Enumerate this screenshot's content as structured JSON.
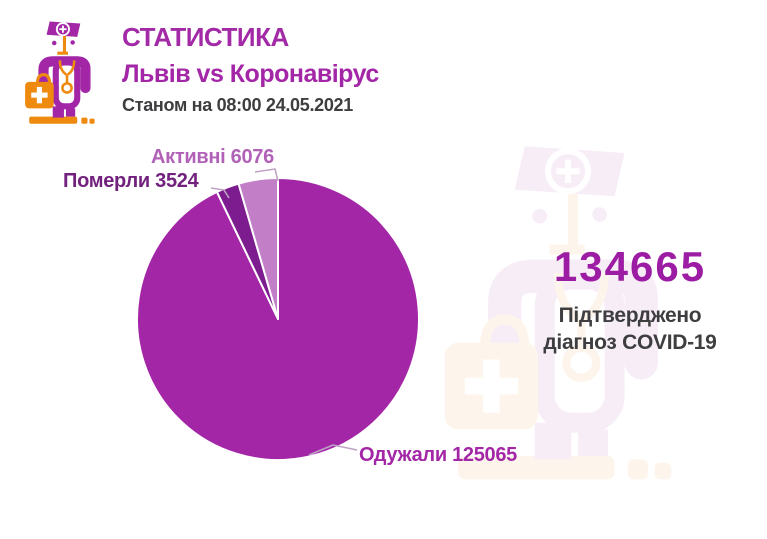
{
  "header": {
    "title": "СТАТИСТИКА",
    "subtitle": "Львів vs Коронавірус",
    "as_of": "Станом на 08:00 24.05.2021"
  },
  "summary": {
    "total": "134665",
    "caption_line1": "Підтверджено",
    "caption_line2": "діагноз COVID-19"
  },
  "icons": {
    "logo": "doctor-mascot-icon",
    "watermark": "doctor-mascot-watermark-icon"
  },
  "chart_data": {
    "type": "pie",
    "title": "",
    "total": 134665,
    "start_angle_deg": 0,
    "direction": "clockwise",
    "legend_position": "callout-labels",
    "slices": [
      {
        "id": "oduzhaly",
        "label": "Одужали",
        "value": 125065,
        "percent": 92.9,
        "color": "#A326A7",
        "label_color": "#A326A7",
        "callout": "Одужали 125065"
      },
      {
        "id": "pomerly",
        "label": "Померли",
        "value": 3524,
        "percent": 2.6,
        "color": "#7C1C8E",
        "label_color": "#73217E",
        "callout": "Померли 3524"
      },
      {
        "id": "aktyvni",
        "label": "Активні",
        "value": 6076,
        "percent": 4.5,
        "color": "#C27FC7",
        "label_color": "#B162B8",
        "callout": "Активні 6076"
      }
    ]
  },
  "colors": {
    "magenta": "#A326A7",
    "dark_purple": "#7C1C8E",
    "light_orchid": "#C27FC7",
    "orange": "#EF8A10",
    "text_dark": "#3E3E40",
    "leader_line": "#BFA3C4",
    "background": "#FFFFFF"
  }
}
